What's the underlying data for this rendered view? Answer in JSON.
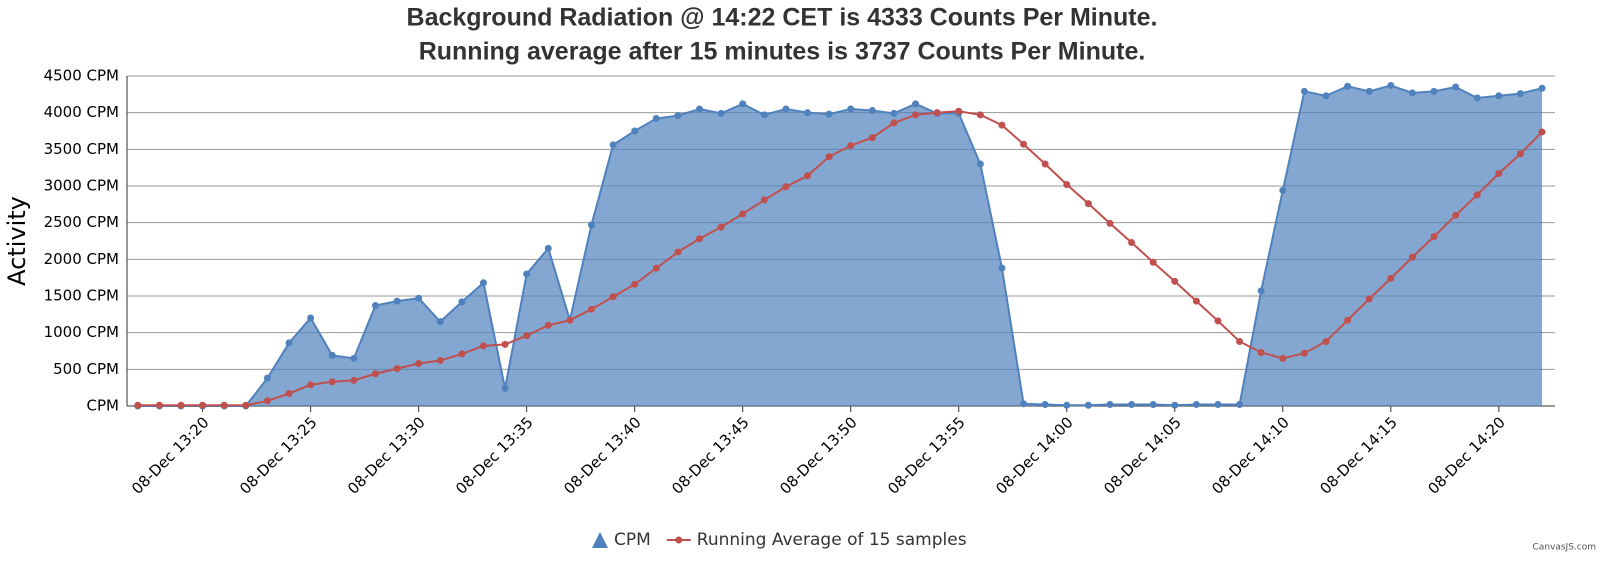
{
  "chart_data": {
    "type": "area",
    "title": [
      "Background Radiation @ 14:22 CET is 4333 Counts Per Minute.",
      "Running average after 15 minutes is 3737 Counts Per Minute."
    ],
    "y_label": "Activity",
    "categories": [
      null,
      null,
      null,
      "08-Dec 13:20",
      null,
      null,
      null,
      null,
      "08-Dec 13:25",
      null,
      null,
      null,
      null,
      "08-Dec 13:30",
      null,
      null,
      null,
      null,
      "08-Dec 13:35",
      null,
      null,
      null,
      null,
      "08-Dec 13:40",
      null,
      null,
      null,
      null,
      "08-Dec 13:45",
      null,
      null,
      null,
      null,
      "08-Dec 13:50",
      null,
      null,
      null,
      null,
      "08-Dec 13:55",
      null,
      null,
      null,
      null,
      "08-Dec 14:00",
      null,
      null,
      null,
      null,
      "08-Dec 14:05",
      null,
      null,
      null,
      null,
      "08-Dec 14:10",
      null,
      null,
      null,
      null,
      "08-Dec 14:15",
      null,
      null,
      null,
      null,
      "08-Dec 14:20",
      null,
      null
    ],
    "xlim": [
      -0.5,
      65.6
    ],
    "series": [
      {
        "name": "CPM",
        "type": "area",
        "color": "#4f81bc",
        "values": [
          0,
          0,
          0,
          0,
          0,
          0,
          380,
          860,
          1200,
          690,
          650,
          1370,
          1430,
          1470,
          1150,
          1420,
          1680,
          240,
          1800,
          2150,
          1170,
          2470,
          3560,
          3750,
          3920,
          3960,
          4050,
          3990,
          4120,
          3970,
          4050,
          4000,
          3980,
          4050,
          4030,
          3990,
          4120,
          3990,
          3990,
          3300,
          1880,
          30,
          20,
          10,
          10,
          20,
          20,
          20,
          10,
          20,
          20,
          20,
          1570,
          2940,
          4290,
          4230,
          4360,
          4290,
          4370,
          4270,
          4290,
          4350,
          4200,
          4230,
          4260,
          4333
        ]
      },
      {
        "name": "Running Average of 15 samples",
        "type": "line",
        "color": "#c0504e",
        "values": [
          10,
          10,
          10,
          10,
          10,
          10,
          70,
          170,
          290,
          330,
          350,
          440,
          510,
          580,
          620,
          710,
          820,
          840,
          960,
          1100,
          1170,
          1320,
          1490,
          1660,
          1880,
          2100,
          2280,
          2440,
          2620,
          2810,
          2990,
          3140,
          3400,
          3550,
          3660,
          3860,
          3970,
          4000,
          4020,
          3970,
          3830,
          3570,
          3300,
          3020,
          2760,
          2490,
          2230,
          1960,
          1700,
          1430,
          1160,
          880,
          730,
          650,
          720,
          880,
          1170,
          1460,
          1740,
          2030,
          2310,
          2600,
          2880,
          3170,
          3440,
          3737
        ]
      }
    ],
    "ylim": [
      0,
      4500
    ],
    "yticks": [
      {
        "value": 0,
        "label": "CPM"
      },
      {
        "value": 500,
        "label": "500 CPM"
      },
      {
        "value": 1000,
        "label": "1000 CPM"
      },
      {
        "value": 1500,
        "label": "1500 CPM"
      },
      {
        "value": 2000,
        "label": "2000 CPM"
      },
      {
        "value": 2500,
        "label": "2500 CPM"
      },
      {
        "value": 3000,
        "label": "3000 CPM"
      },
      {
        "value": 3500,
        "label": "3500 CPM"
      },
      {
        "value": 4000,
        "label": "4000 CPM"
      },
      {
        "value": 4500,
        "label": "4500 CPM"
      }
    ],
    "grid": true,
    "legend": "bottom",
    "credit": "CanvasJS.com"
  }
}
